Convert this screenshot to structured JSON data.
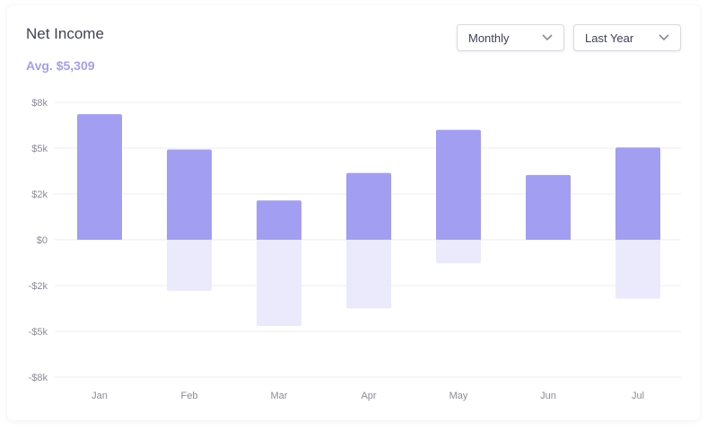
{
  "header": {
    "title": "Net Income",
    "avg": "Avg. $5,309"
  },
  "filters": {
    "period": "Monthly",
    "range": "Last Year"
  },
  "icons": {
    "dropdown": "chevron-down-icon"
  },
  "colors": {
    "positive": "#a29ef2",
    "negative": "#ebeafc",
    "grid": "#ececf1"
  },
  "chart_data": {
    "type": "bar",
    "categories": [
      "Jan",
      "Feb",
      "Mar",
      "Apr",
      "May",
      "Jun",
      "Jul"
    ],
    "series": [
      {
        "values": [
          6400,
          4600,
          2000,
          3400,
          5600,
          3300,
          4700
        ]
      },
      {
        "values": [
          0,
          -2600,
          -4400,
          -3500,
          -1200,
          0,
          -3000
        ]
      }
    ],
    "y_ticks": [
      {
        "value": 8000,
        "label": "$8k"
      },
      {
        "value": 5000,
        "label": "$5k"
      },
      {
        "value": 2000,
        "label": "$2k"
      },
      {
        "value": 0,
        "label": "$0"
      },
      {
        "value": -2000,
        "label": "-$2k"
      },
      {
        "value": -5000,
        "label": "-$5k"
      },
      {
        "value": -8000,
        "label": "-$8k"
      }
    ],
    "ylim": [
      -7000,
      7000
    ],
    "grid": true
  }
}
